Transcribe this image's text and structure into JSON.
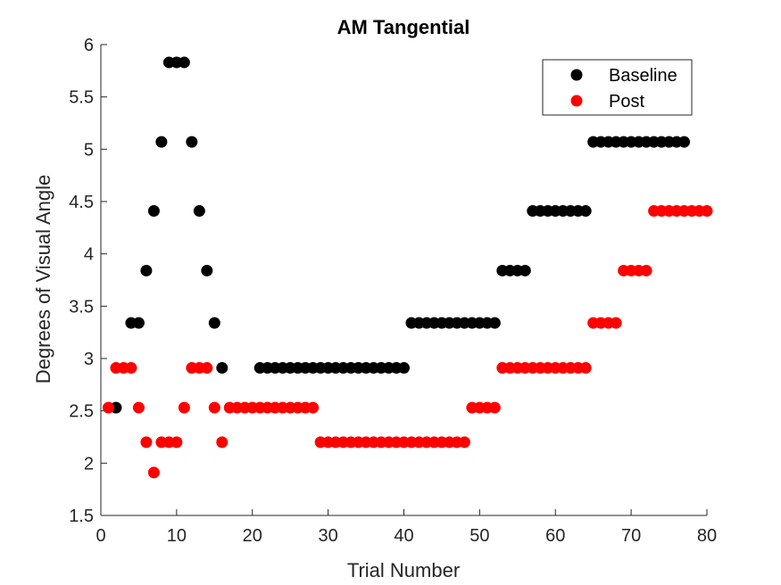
{
  "chart_data": {
    "type": "scatter",
    "title": "AM Tangential",
    "xlabel": "Trial Number",
    "ylabel": "Degrees of Visual Angle",
    "xlim": [
      0,
      80
    ],
    "ylim": [
      1.5,
      6
    ],
    "xticks": [
      "0",
      "10",
      "20",
      "30",
      "40",
      "50",
      "60",
      "70",
      "80"
    ],
    "yticks": [
      "1.5",
      "2",
      "2.5",
      "3",
      "3.5",
      "4",
      "4.5",
      "5",
      "5.5",
      "6"
    ],
    "grid": false,
    "legend_position": "top-right",
    "series": [
      {
        "name": "Baseline",
        "color": "#000000",
        "x": [
          2,
          4,
          5,
          6,
          7,
          8,
          9,
          10,
          11,
          12,
          13,
          14,
          15,
          16,
          21,
          22,
          23,
          24,
          25,
          26,
          27,
          28,
          29,
          30,
          31,
          32,
          33,
          34,
          35,
          36,
          37,
          38,
          39,
          40,
          41,
          42,
          43,
          44,
          45,
          46,
          47,
          48,
          49,
          50,
          51,
          52,
          53,
          54,
          55,
          56,
          57,
          58,
          59,
          60,
          61,
          62,
          63,
          64,
          65,
          66,
          67,
          68,
          69,
          70,
          71,
          72,
          73,
          74,
          75,
          76,
          77
        ],
        "y": [
          2.53,
          3.34,
          3.34,
          3.84,
          4.41,
          5.07,
          5.83,
          5.83,
          5.83,
          5.07,
          4.41,
          3.84,
          3.34,
          2.91,
          2.91,
          2.91,
          2.91,
          2.91,
          2.91,
          2.91,
          2.91,
          2.91,
          2.91,
          2.91,
          2.91,
          2.91,
          2.91,
          2.91,
          2.91,
          2.91,
          2.91,
          2.91,
          2.91,
          2.91,
          3.34,
          3.34,
          3.34,
          3.34,
          3.34,
          3.34,
          3.34,
          3.34,
          3.34,
          3.34,
          3.34,
          3.34,
          3.84,
          3.84,
          3.84,
          3.84,
          4.41,
          4.41,
          4.41,
          4.41,
          4.41,
          4.41,
          4.41,
          4.41,
          5.07,
          5.07,
          5.07,
          5.07,
          5.07,
          5.07,
          5.07,
          5.07,
          5.07,
          5.07,
          5.07,
          5.07,
          5.07
        ]
      },
      {
        "name": "Post",
        "color": "#ff0000",
        "x": [
          1,
          2,
          3,
          4,
          5,
          6,
          7,
          8,
          9,
          10,
          11,
          12,
          13,
          14,
          15,
          16,
          17,
          18,
          19,
          20,
          21,
          22,
          23,
          24,
          25,
          26,
          27,
          28,
          29,
          30,
          31,
          32,
          33,
          34,
          35,
          36,
          37,
          38,
          39,
          40,
          41,
          42,
          43,
          44,
          45,
          46,
          47,
          48,
          49,
          50,
          51,
          52,
          53,
          54,
          55,
          56,
          57,
          58,
          59,
          60,
          61,
          62,
          63,
          64,
          65,
          66,
          67,
          68,
          69,
          70,
          71,
          72,
          73,
          74,
          75,
          76,
          77,
          78,
          79,
          80
        ],
        "y": [
          2.53,
          2.91,
          2.91,
          2.91,
          2.53,
          2.2,
          1.91,
          2.2,
          2.2,
          2.2,
          2.53,
          2.91,
          2.91,
          2.91,
          2.53,
          2.2,
          2.53,
          2.53,
          2.53,
          2.53,
          2.53,
          2.53,
          2.53,
          2.53,
          2.53,
          2.53,
          2.53,
          2.53,
          2.2,
          2.2,
          2.2,
          2.2,
          2.2,
          2.2,
          2.2,
          2.2,
          2.2,
          2.2,
          2.2,
          2.2,
          2.2,
          2.2,
          2.2,
          2.2,
          2.2,
          2.2,
          2.2,
          2.2,
          2.53,
          2.53,
          2.53,
          2.53,
          2.91,
          2.91,
          2.91,
          2.91,
          2.91,
          2.91,
          2.91,
          2.91,
          2.91,
          2.91,
          2.91,
          2.91,
          3.34,
          3.34,
          3.34,
          3.34,
          3.84,
          3.84,
          3.84,
          3.84,
          4.41,
          4.41,
          4.41,
          4.41,
          4.41,
          4.41,
          4.41,
          4.41
        ]
      }
    ]
  }
}
